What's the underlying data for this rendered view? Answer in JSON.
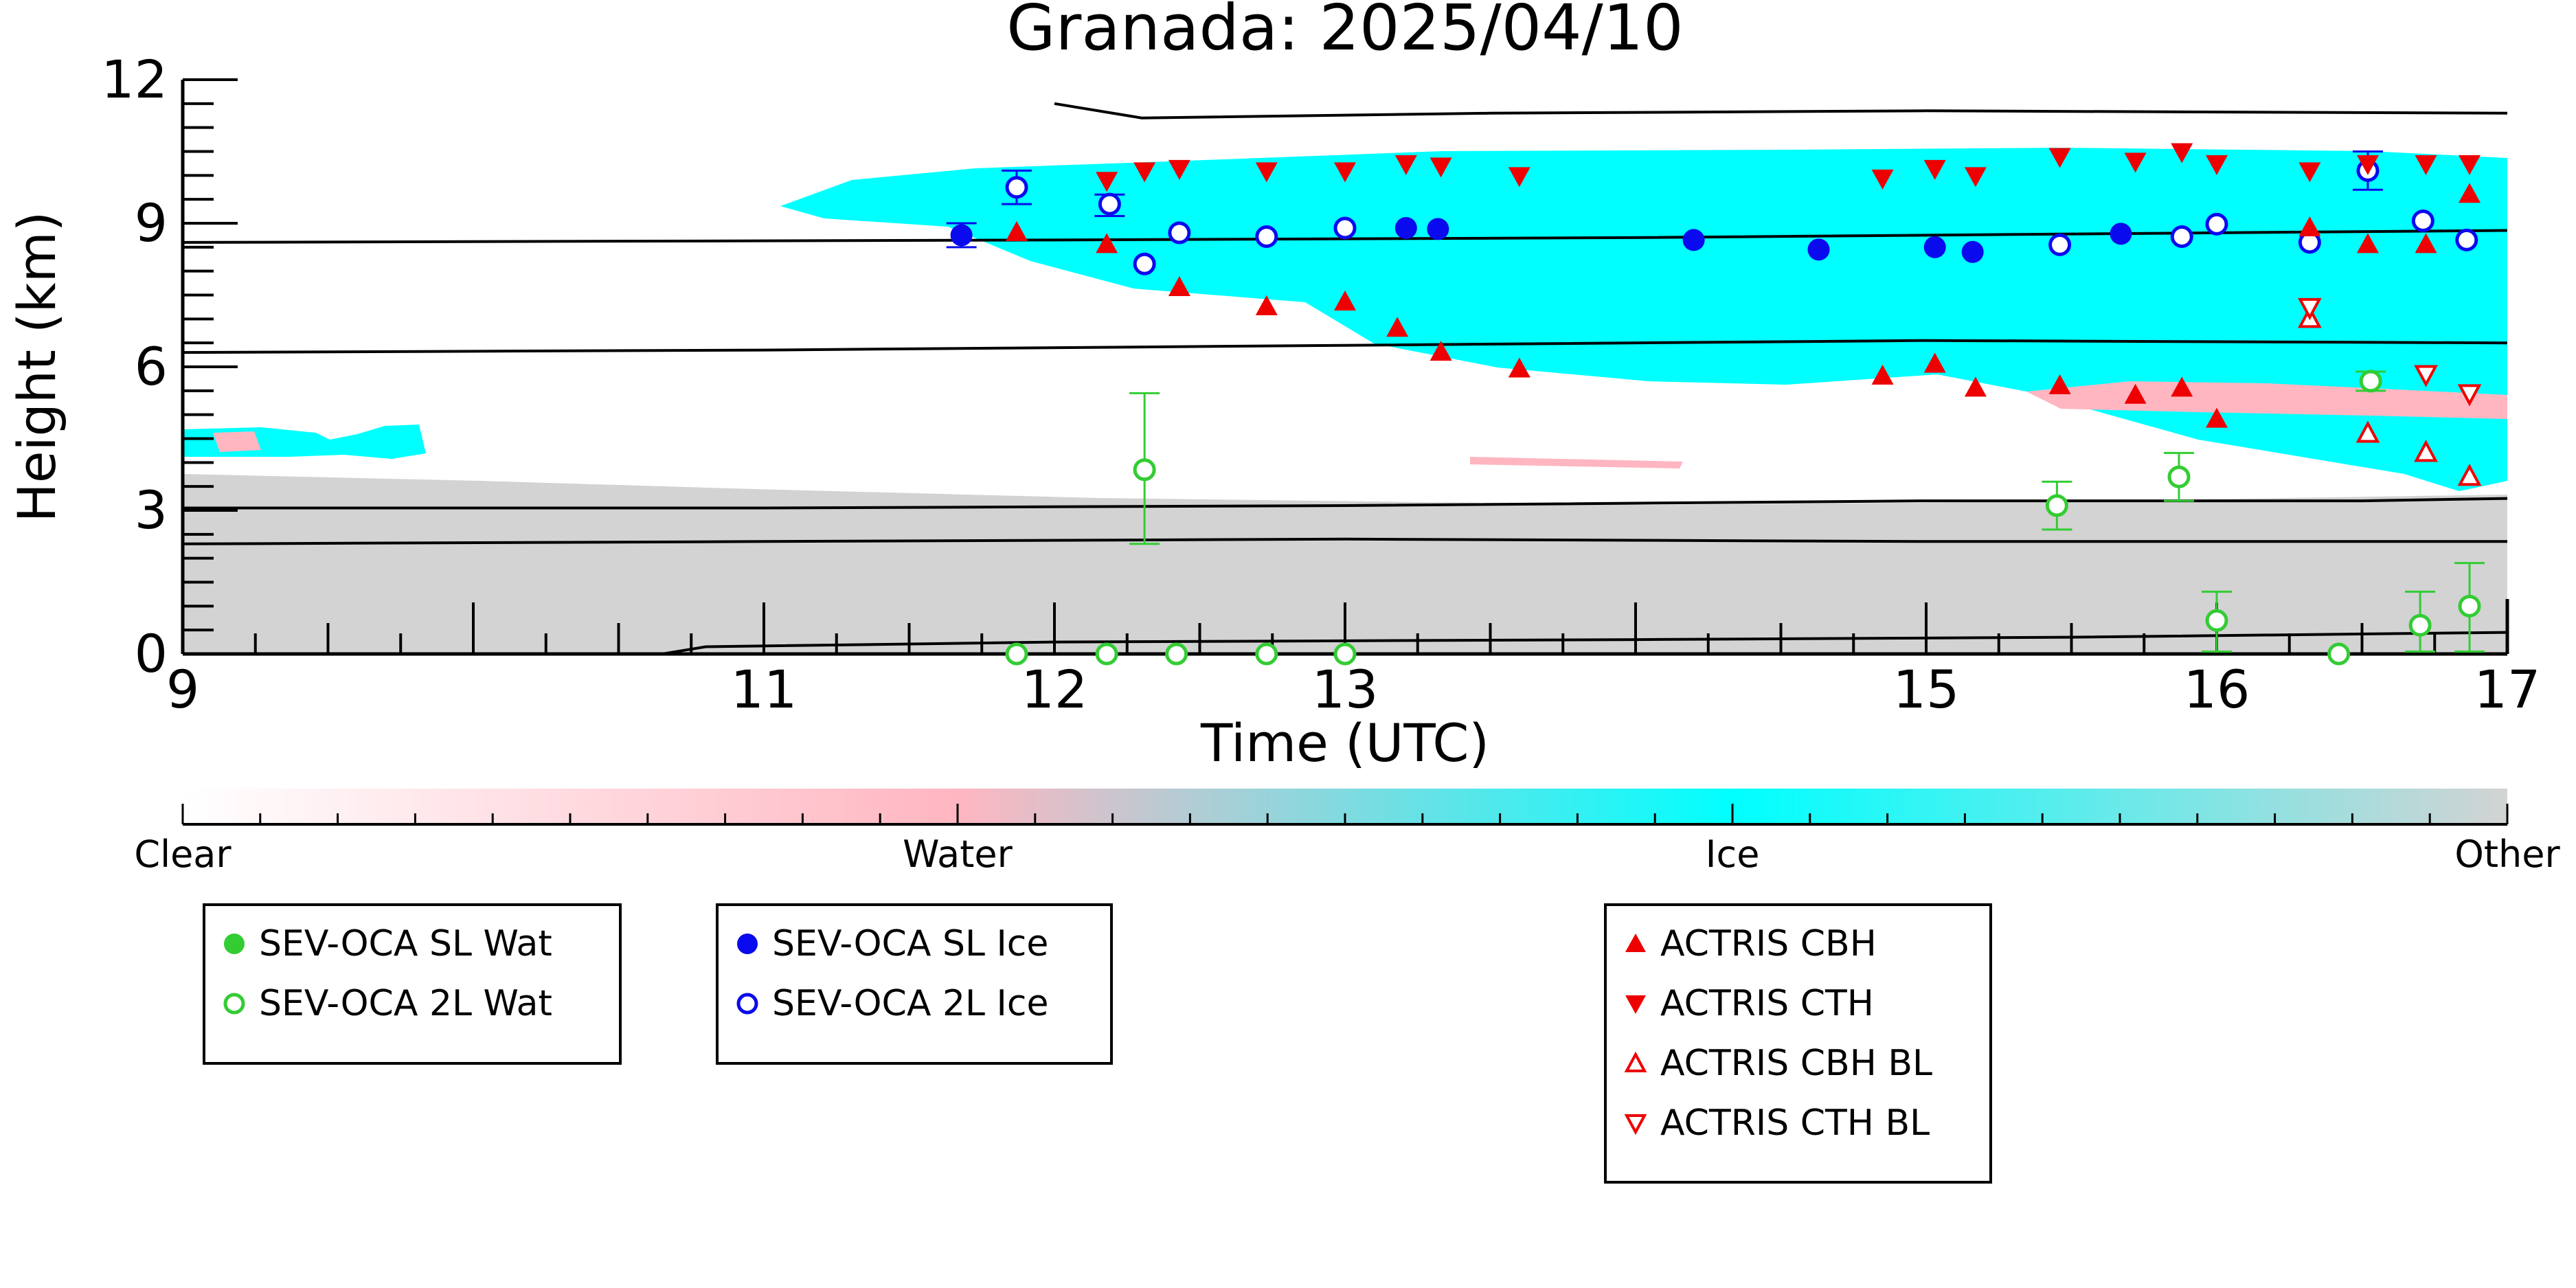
{
  "chart_data": {
    "type": "scatter",
    "title": "Granada: 2025/04/10",
    "xlabel": "Time (UTC)",
    "ylabel": "Height (km)",
    "xlim": [
      9,
      17
    ],
    "ylim": [
      0,
      12
    ],
    "xticks": [
      9,
      11,
      12,
      13,
      15,
      16,
      17
    ],
    "yticks": [
      0,
      3,
      6,
      9,
      12
    ],
    "colorbar": {
      "labels": [
        "Clear",
        "Water",
        "Ice",
        "Other"
      ],
      "colors": [
        "#ffffff",
        "#ffb6c1",
        "#00ffff",
        "#d3d3d3"
      ]
    },
    "background_colors": {
      "ice": "#00ffff",
      "water": "#ffb6c1",
      "other": "#d3d3d3"
    },
    "series": [
      {
        "name": "SEV-OCA SL Wat",
        "color": "#33cc33",
        "marker": "filled-circle",
        "points": []
      },
      {
        "name": "SEV-OCA 2L Wat",
        "color": "#33cc33",
        "marker": "open-circle",
        "points": [
          {
            "x": 11.87,
            "y": 0.0
          },
          {
            "x": 12.18,
            "y": 0.0
          },
          {
            "x": 12.31,
            "y": 3.85,
            "lo": 2.3,
            "hi": 5.45
          },
          {
            "x": 12.42,
            "y": 0.0
          },
          {
            "x": 12.73,
            "y": 0.0
          },
          {
            "x": 13.0,
            "y": 0.0
          },
          {
            "x": 15.45,
            "y": 3.1,
            "lo": 2.6,
            "hi": 3.6
          },
          {
            "x": 15.87,
            "y": 3.7,
            "lo": 3.2,
            "hi": 4.2
          },
          {
            "x": 16.0,
            "y": 0.7,
            "lo": 0.05,
            "hi": 1.3
          },
          {
            "x": 16.42,
            "y": 0.0
          },
          {
            "x": 16.53,
            "y": 5.7,
            "lo": 5.5,
            "hi": 5.9
          },
          {
            "x": 16.7,
            "y": 0.6,
            "lo": 0.05,
            "hi": 1.3
          },
          {
            "x": 16.87,
            "y": 1.0,
            "lo": 0.05,
            "hi": 1.9
          }
        ]
      },
      {
        "name": "SEV-OCA SL Ice",
        "color": "#0a0aee",
        "marker": "filled-circle",
        "points": [
          {
            "x": 11.68,
            "y": 8.75,
            "lo": 8.5,
            "hi": 9.0
          },
          {
            "x": 13.21,
            "y": 8.9
          },
          {
            "x": 13.32,
            "y": 8.88
          },
          {
            "x": 14.2,
            "y": 8.65
          },
          {
            "x": 14.63,
            "y": 8.45
          },
          {
            "x": 15.03,
            "y": 8.5
          },
          {
            "x": 15.16,
            "y": 8.4
          },
          {
            "x": 15.67,
            "y": 8.78
          }
        ]
      },
      {
        "name": "SEV-OCA 2L Ice",
        "color": "#0a0aee",
        "marker": "open-circle",
        "points": [
          {
            "x": 11.87,
            "y": 9.75,
            "lo": 9.4,
            "hi": 10.1
          },
          {
            "x": 12.19,
            "y": 9.4,
            "lo": 9.15,
            "hi": 9.6
          },
          {
            "x": 12.31,
            "y": 8.15
          },
          {
            "x": 12.43,
            "y": 8.8
          },
          {
            "x": 12.73,
            "y": 8.72
          },
          {
            "x": 13.0,
            "y": 8.9
          },
          {
            "x": 15.46,
            "y": 8.55
          },
          {
            "x": 15.88,
            "y": 8.72
          },
          {
            "x": 16.0,
            "y": 8.98
          },
          {
            "x": 16.32,
            "y": 8.6
          },
          {
            "x": 16.52,
            "y": 10.1,
            "lo": 9.7,
            "hi": 10.5
          },
          {
            "x": 16.71,
            "y": 9.05
          },
          {
            "x": 16.86,
            "y": 8.65
          }
        ]
      },
      {
        "name": "ACTRIS CBH",
        "color": "#ee0000",
        "marker": "filled-triangle-up",
        "points": [
          {
            "x": 11.87,
            "y": 8.8
          },
          {
            "x": 12.18,
            "y": 8.55
          },
          {
            "x": 12.43,
            "y": 7.65
          },
          {
            "x": 12.73,
            "y": 7.25
          },
          {
            "x": 13.0,
            "y": 7.35
          },
          {
            "x": 13.18,
            "y": 6.8
          },
          {
            "x": 13.33,
            "y": 6.3
          },
          {
            "x": 13.6,
            "y": 5.95
          },
          {
            "x": 14.85,
            "y": 5.8
          },
          {
            "x": 15.03,
            "y": 6.05
          },
          {
            "x": 15.17,
            "y": 5.55
          },
          {
            "x": 15.46,
            "y": 5.6
          },
          {
            "x": 15.72,
            "y": 5.4
          },
          {
            "x": 15.88,
            "y": 5.55
          },
          {
            "x": 16.0,
            "y": 4.9
          },
          {
            "x": 16.32,
            "y": 8.9
          },
          {
            "x": 16.52,
            "y": 8.55
          },
          {
            "x": 16.72,
            "y": 8.55
          },
          {
            "x": 16.87,
            "y": 9.6
          }
        ]
      },
      {
        "name": "ACTRIS CTH",
        "color": "#ee0000",
        "marker": "filled-triangle-down",
        "points": [
          {
            "x": 12.18,
            "y": 9.9
          },
          {
            "x": 12.31,
            "y": 10.1
          },
          {
            "x": 12.43,
            "y": 10.15
          },
          {
            "x": 12.73,
            "y": 10.1
          },
          {
            "x": 13.0,
            "y": 10.1
          },
          {
            "x": 13.21,
            "y": 10.25
          },
          {
            "x": 13.33,
            "y": 10.2
          },
          {
            "x": 13.6,
            "y": 10.0
          },
          {
            "x": 14.85,
            "y": 9.95
          },
          {
            "x": 15.03,
            "y": 10.15
          },
          {
            "x": 15.17,
            "y": 10.0
          },
          {
            "x": 15.46,
            "y": 10.4
          },
          {
            "x": 15.72,
            "y": 10.3
          },
          {
            "x": 15.88,
            "y": 10.5
          },
          {
            "x": 16.0,
            "y": 10.25
          },
          {
            "x": 16.32,
            "y": 10.1
          },
          {
            "x": 16.52,
            "y": 10.25
          },
          {
            "x": 16.72,
            "y": 10.25
          },
          {
            "x": 16.87,
            "y": 10.25
          }
        ]
      },
      {
        "name": "ACTRIS CBH BL",
        "color": "#ee0000",
        "marker": "open-triangle-up",
        "points": [
          {
            "x": 16.32,
            "y": 7.0
          },
          {
            "x": 16.52,
            "y": 4.6
          },
          {
            "x": 16.72,
            "y": 4.2
          },
          {
            "x": 16.87,
            "y": 3.7
          }
        ]
      },
      {
        "name": "ACTRIS CTH BL",
        "color": "#ee0000",
        "marker": "open-triangle-down",
        "points": [
          {
            "x": 16.32,
            "y": 7.25
          },
          {
            "x": 16.72,
            "y": 5.85
          },
          {
            "x": 16.87,
            "y": 5.45
          }
        ]
      }
    ],
    "contour_lines": [
      [
        [
          9,
          8.6
        ],
        [
          12,
          8.65
        ],
        [
          14,
          8.7
        ],
        [
          16,
          8.8
        ],
        [
          17,
          8.85
        ]
      ],
      [
        [
          9,
          6.3
        ],
        [
          11,
          6.35
        ],
        [
          13,
          6.45
        ],
        [
          15,
          6.55
        ],
        [
          17,
          6.5
        ]
      ],
      [
        [
          9,
          3.05
        ],
        [
          11,
          3.05
        ],
        [
          13,
          3.1
        ],
        [
          15,
          3.2
        ],
        [
          16.5,
          3.2
        ],
        [
          17,
          3.25
        ]
      ],
      [
        [
          9,
          2.3
        ],
        [
          11,
          2.35
        ],
        [
          13,
          2.4
        ],
        [
          15,
          2.35
        ],
        [
          17,
          2.35
        ]
      ],
      [
        [
          9,
          0.0
        ],
        [
          10.65,
          0.0
        ],
        [
          10.8,
          0.15
        ],
        [
          12,
          0.25
        ],
        [
          14,
          0.3
        ],
        [
          15.5,
          0.35
        ],
        [
          17,
          0.45
        ]
      ],
      [
        [
          12.0,
          11.5
        ],
        [
          12.3,
          11.2
        ],
        [
          13.5,
          11.3
        ],
        [
          15,
          11.35
        ],
        [
          17,
          11.3
        ]
      ]
    ],
    "legend_placement": "below"
  }
}
